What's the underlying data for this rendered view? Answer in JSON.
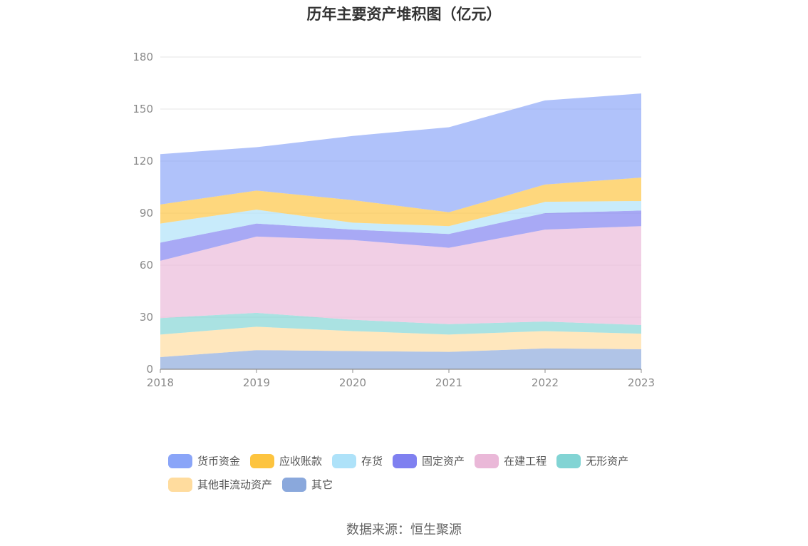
{
  "title": "历年主要资产堆积图（亿元）",
  "source": "数据来源：恒生聚源",
  "chart_data": {
    "type": "area",
    "stacked": true,
    "x": [
      "2018",
      "2019",
      "2020",
      "2021",
      "2022",
      "2023"
    ],
    "ylim": [
      0,
      180
    ],
    "yticks": [
      "0",
      "30",
      "60",
      "90",
      "120",
      "150",
      "180"
    ],
    "grid": true,
    "legend_position": "bottom",
    "series": [
      {
        "name": "其它",
        "color": "#8aa8dc",
        "values": [
          7,
          11,
          10.5,
          10,
          12,
          11.5
        ]
      },
      {
        "name": "其他非流动资产",
        "color": "#ffdc9e",
        "values": [
          13,
          13.5,
          11.5,
          10,
          10,
          9
        ]
      },
      {
        "name": "无形资产",
        "color": "#82d4d4",
        "values": [
          9.5,
          8,
          6.5,
          6,
          5.5,
          5
        ]
      },
      {
        "name": "在建工程",
        "color": "#eab8d8",
        "values": [
          33,
          44,
          46,
          44,
          53,
          57
        ]
      },
      {
        "name": "固定资产",
        "color": "#7f80f0",
        "values": [
          10.5,
          7.5,
          6,
          8,
          9.5,
          9
        ]
      },
      {
        "name": "存货",
        "color": "#aee2f9",
        "values": [
          11,
          8,
          4,
          4.5,
          6.5,
          5.5
        ]
      },
      {
        "name": "应收账款",
        "color": "#fdc43f",
        "values": [
          11,
          11,
          13,
          8,
          10,
          13.5
        ]
      },
      {
        "name": "货币资金",
        "color": "#8aa5f8",
        "values": [
          29,
          25,
          37,
          49,
          48.5,
          48.5
        ]
      }
    ]
  },
  "legend": {
    "rows": [
      [
        {
          "label": "货币资金",
          "color": "#8aa5f8"
        },
        {
          "label": "应收账款",
          "color": "#fdc43f"
        },
        {
          "label": "存货",
          "color": "#aee2f9"
        },
        {
          "label": "固定资产",
          "color": "#7f80f0"
        },
        {
          "label": "在建工程",
          "color": "#eab8d8"
        },
        {
          "label": "无形资产",
          "color": "#82d4d4"
        }
      ],
      [
        {
          "label": "其他非流动资产",
          "color": "#ffdc9e"
        },
        {
          "label": "其它",
          "color": "#8aa8dc"
        }
      ]
    ]
  }
}
